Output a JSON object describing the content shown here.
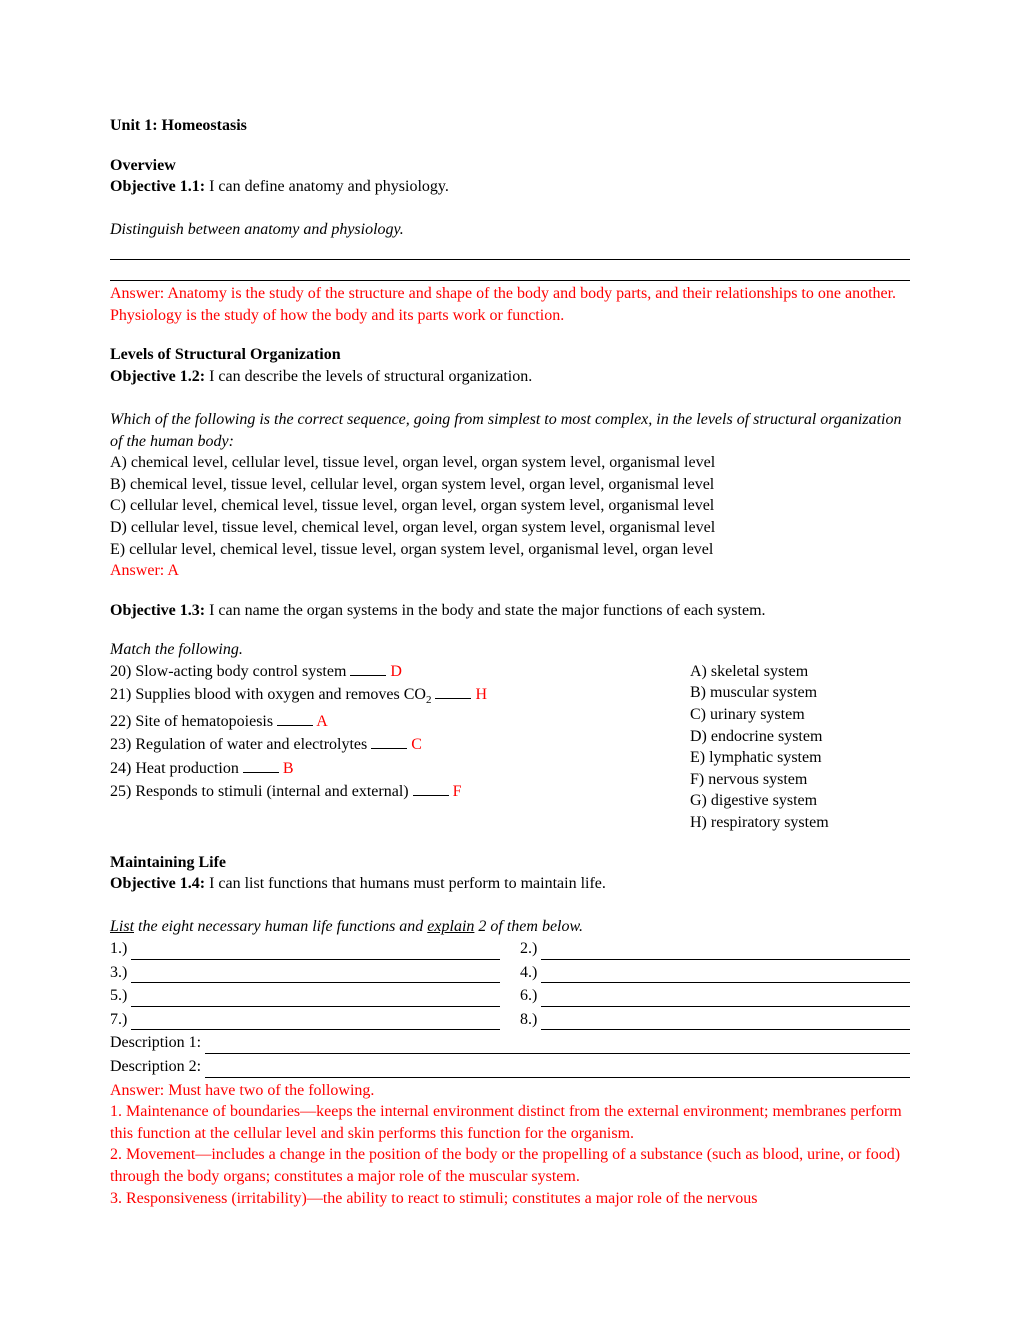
{
  "colors": {
    "text": "#000000",
    "answer": "#ff0000",
    "background": "#ffffff"
  },
  "typography": {
    "family": "Times New Roman",
    "body_size_pt": 12,
    "sub_size_pt": 8
  },
  "title": "Unit 1: Homeostasis",
  "overview": {
    "heading": "Overview",
    "objective_label": "Objective 1.1:",
    "objective_text": " I can define anatomy and physiology.",
    "prompt": "Distinguish between anatomy and physiology.",
    "answer_label": "Answer:  ",
    "answer_text": "Anatomy is the study of the structure and shape of the body and body parts, and their relationships to one another. Physiology is the study of how the body and its parts work or function."
  },
  "levels": {
    "heading": "Levels of Structural Organization",
    "objective_label": "Objective 1.2:",
    "objective_text": " I can describe the levels of structural organization.",
    "prompt": "Which of the following is the correct sequence, going from simplest to most complex, in the levels of structural organization of the human body:",
    "options": {
      "A": "A) chemical level, cellular level, tissue level, organ level, organ system level, organismal level",
      "B": "B) chemical level, tissue level, cellular level, organ system level, organ level, organismal level",
      "C": "C) cellular level, chemical level, tissue level, organ level, organ system level, organismal level",
      "D": "D) cellular level, tissue level, chemical level, organ level, organ system level, organismal level",
      "E": "E) cellular level, chemical level, tissue level, organ system level, organismal level, organ level"
    },
    "answer": "Answer: A"
  },
  "objective13": {
    "label": "Objective 1.3:",
    "text": " I can name the organ systems in the body and state the major functions of each system."
  },
  "matching": {
    "prompt": "Match the following.",
    "left": [
      {
        "num": "20)",
        "text": " Slow-acting body control system ",
        "ans": "D"
      },
      {
        "num": "21)",
        "text1": " Supplies blood with oxygen and removes CO",
        "sub": "2",
        "text2": " ",
        "ans": "H"
      },
      {
        "num": "22)",
        "text": " Site of hematopoiesis ",
        "ans": "A"
      },
      {
        "num": "23)",
        "text": " Regulation of water and electrolytes ",
        "ans": "C"
      },
      {
        "num": "24)",
        "text": " Heat production ",
        "ans": "B"
      },
      {
        "num": "25)",
        "text": " Responds to stimuli (internal and external) ",
        "ans": "F"
      }
    ],
    "right": [
      "A) skeletal system",
      "B) muscular system",
      "C) urinary system",
      "D) endocrine system",
      "E) lymphatic system",
      "F) nervous system",
      "G) digestive system",
      "H) respiratory system"
    ]
  },
  "maintaining": {
    "heading": "Maintaining Life",
    "objective_label": "Objective 1.4:",
    "objective_text": " I can list functions that humans must perform to maintain life.",
    "prompt_pre": "List",
    "prompt_mid": " the eight necessary human life functions and ",
    "prompt_exp": "explain",
    "prompt_post": " 2 of them below.",
    "nums": [
      "1.)",
      "2.)",
      "3.)",
      "4.)",
      "5.)",
      "6.)",
      "7.)",
      "8.)"
    ],
    "desc1": "Description 1:",
    "desc2": "Description 2:",
    "answer_heading": "Answer:  Must have two of the following.",
    "answers": [
      "1.  Maintenance of boundaries—keeps the internal environment distinct from the external environment; membranes perform this function at the cellular level and skin performs this function for the organism.",
      "2.  Movement—includes a change in the position of the body or the propelling of a substance (such as blood, urine, or food) through the body organs;  constitutes a major role of the muscular system.",
      "3.  Responsiveness (irritability)—the ability to react to stimuli; constitutes a major role of the nervous"
    ]
  }
}
